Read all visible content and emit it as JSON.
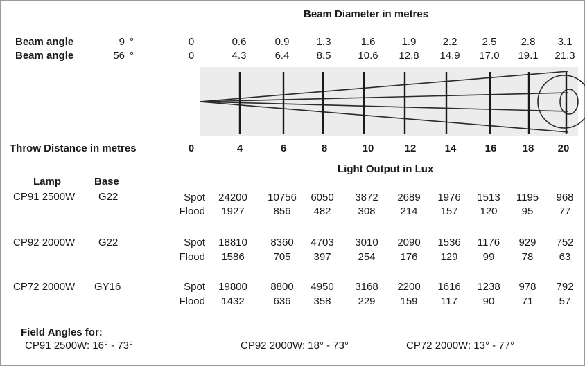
{
  "header": {
    "beam_diameter_title": "Beam Diameter in metres",
    "beam_rows": [
      {
        "label": "Beam angle",
        "angle": "9",
        "deg": "°",
        "values": [
          "0",
          "0.6",
          "0.9",
          "1.3",
          "1.6",
          "1.9",
          "2.2",
          "2.5",
          "2.8",
          "3.1"
        ]
      },
      {
        "label": "Beam angle",
        "angle": "56",
        "deg": "°",
        "values": [
          "0",
          "4.3",
          "6.4",
          "8.5",
          "10.6",
          "12.8",
          "14.9",
          "17.0",
          "19.1",
          "21.3"
        ]
      }
    ]
  },
  "throw": {
    "label": "Throw Distance in metres",
    "values": [
      "0",
      "4",
      "6",
      "8",
      "10",
      "12",
      "14",
      "16",
      "18",
      "20"
    ]
  },
  "light_output": {
    "title": "Light Output in Lux",
    "lamp_header": "Lamp",
    "base_header": "Base",
    "lamps": [
      {
        "name": "CP91 2500W",
        "base": "G22",
        "spot_label": "Spot",
        "spot": [
          "24200",
          "10756",
          "6050",
          "3872",
          "2689",
          "1976",
          "1513",
          "1195",
          "968"
        ],
        "flood_label": "Flood",
        "flood": [
          "1927",
          "856",
          "482",
          "308",
          "214",
          "157",
          "120",
          "95",
          "77"
        ]
      },
      {
        "name": "CP92 2000W",
        "base": "G22",
        "spot_label": "Spot",
        "spot": [
          "18810",
          "8360",
          "4703",
          "3010",
          "2090",
          "1536",
          "1176",
          "929",
          "752"
        ],
        "flood_label": "Flood",
        "flood": [
          "1586",
          "705",
          "397",
          "254",
          "176",
          "129",
          "99",
          "78",
          "63"
        ]
      },
      {
        "name": "CP72 2000W",
        "base": "GY16",
        "spot_label": "Spot",
        "spot": [
          "19800",
          "8800",
          "4950",
          "3168",
          "2200",
          "1616",
          "1238",
          "978",
          "792"
        ],
        "flood_label": "Flood",
        "flood": [
          "1432",
          "636",
          "358",
          "229",
          "159",
          "117",
          "90",
          "71",
          "57"
        ]
      }
    ]
  },
  "field_angles": {
    "title": "Field Angles for:",
    "items": [
      "CP91 2500W: 16° - 73°",
      "CP92 2000W: 18° - 73°",
      "CP72 2000W: 13° - 77°"
    ]
  }
}
